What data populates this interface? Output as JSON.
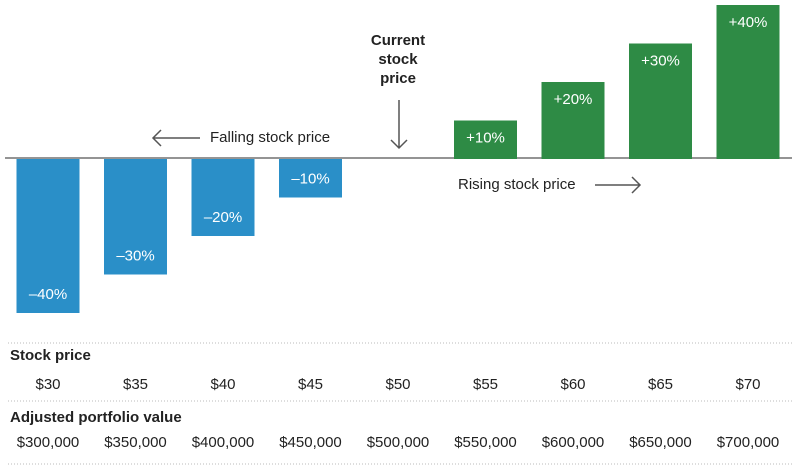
{
  "chart_data": {
    "type": "bar",
    "categories": [
      "$30",
      "$35",
      "$40",
      "$45",
      "$50",
      "$55",
      "$60",
      "$65",
      "$70"
    ],
    "values": [
      -40,
      -30,
      -20,
      -10,
      null,
      10,
      20,
      30,
      40
    ],
    "value_labels": [
      "–40%",
      "–30%",
      "–20%",
      "–10%",
      null,
      "+10%",
      "+20%",
      "+30%",
      "+40%"
    ],
    "negative_color": "#2a8fc8",
    "positive_color": "#2e8b45",
    "ylim": [
      -40,
      40
    ],
    "annotations": {
      "current": "Current stock price",
      "falling": "Falling stock price",
      "rising": "Rising stock price"
    },
    "table": {
      "price_header": "Stock price",
      "portfolio_header": "Adjusted portfolio value",
      "portfolio_values": [
        "$300,000",
        "$350,000",
        "$400,000",
        "$450,000",
        "$500,000",
        "$550,000",
        "$600,000",
        "$650,000",
        "$700,000"
      ]
    }
  }
}
